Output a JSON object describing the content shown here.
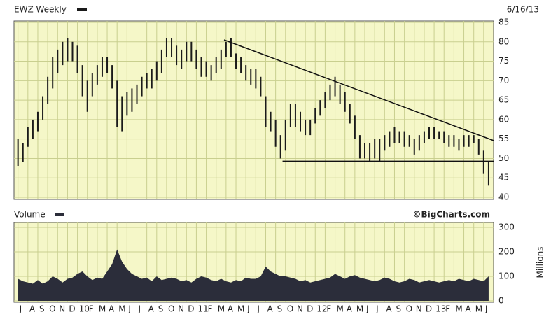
{
  "chart_data": [
    {
      "type": "range-bar",
      "title": "EWZ Weekly",
      "date": "6/16/13",
      "color": "#1a1a1a",
      "grid": true,
      "xlim": [
        -0.4,
        48
      ],
      "ylim": [
        40,
        85
      ],
      "yticks": [
        85,
        80,
        75,
        70,
        65,
        60,
        55,
        50,
        45,
        40
      ],
      "x": [
        0,
        0.5,
        1,
        1.5,
        2,
        2.5,
        3,
        3.5,
        4,
        4.5,
        5,
        5.5,
        6,
        6.5,
        7,
        7.5,
        8,
        8.5,
        9,
        9.5,
        10,
        10.5,
        11,
        11.5,
        12,
        12.5,
        13,
        13.5,
        14,
        14.5,
        15,
        15.5,
        16,
        16.5,
        17,
        17.5,
        18,
        18.5,
        19,
        19.5,
        20,
        20.5,
        21,
        21.5,
        22,
        22.5,
        23,
        23.5,
        24,
        24.5,
        25,
        25.5,
        26,
        26.5,
        27,
        27.5,
        28,
        28.5,
        29,
        29.5,
        30,
        30.5,
        31,
        31.5,
        32,
        32.5,
        33,
        33.5,
        34,
        34.5,
        35,
        35.5,
        36,
        36.5,
        37,
        37.5,
        38,
        38.5,
        39,
        39.5,
        40,
        40.5,
        41,
        41.5,
        42,
        42.5,
        43,
        43.5,
        44,
        44.5,
        45,
        45.5,
        46,
        46.5,
        47,
        47.5
      ],
      "high": [
        55,
        54,
        58,
        60,
        62,
        66,
        71,
        76,
        78,
        80,
        81,
        80,
        79,
        74,
        70,
        72,
        74,
        76,
        76,
        74,
        70,
        66,
        67,
        68,
        69,
        71,
        72,
        73,
        75,
        78,
        81,
        81,
        79,
        78,
        80,
        80,
        78,
        76,
        75,
        74,
        76,
        78,
        80,
        81,
        77,
        76,
        74,
        73,
        73,
        71,
        66,
        62,
        60,
        56,
        60,
        64,
        64,
        62,
        60,
        60,
        63,
        65,
        67,
        69,
        71,
        69,
        67,
        64,
        61,
        56,
        54,
        54,
        55,
        55,
        56,
        57,
        58,
        57,
        57,
        56,
        55,
        56,
        57,
        58,
        58,
        57,
        57,
        56,
        56,
        55,
        56,
        56,
        56,
        55,
        52,
        49
      ],
      "low": [
        48,
        49,
        53,
        55,
        57,
        60,
        64,
        68,
        72,
        74,
        75,
        75,
        72,
        66,
        62,
        66,
        69,
        71,
        72,
        68,
        58,
        57,
        61,
        62,
        64,
        66,
        68,
        68,
        70,
        72,
        76,
        76,
        74,
        73,
        75,
        75,
        73,
        71,
        71,
        70,
        72,
        73,
        76,
        76,
        73,
        72,
        70,
        69,
        68,
        66,
        58,
        57,
        53,
        50,
        52,
        58,
        58,
        57,
        56,
        56,
        59,
        61,
        63,
        65,
        66,
        64,
        62,
        59,
        55,
        50,
        50,
        49,
        50,
        49,
        52,
        53,
        54,
        54,
        53,
        53,
        51,
        52,
        54,
        55,
        55,
        55,
        54,
        53,
        53,
        52,
        53,
        53,
        54,
        51,
        46,
        43
      ],
      "trendlines": [
        {
          "x": [
            20.8,
            48
          ],
          "y": [
            80.5,
            54.6
          ]
        },
        {
          "x": [
            26.7,
            48
          ],
          "y": [
            49.3,
            49.3
          ]
        }
      ]
    },
    {
      "type": "area",
      "title": "Volume",
      "source": "©BigCharts.com",
      "ylabel": "Millions",
      "color": "#2b2d3a",
      "grid": true,
      "xlim": [
        -0.4,
        48
      ],
      "ylim": [
        0,
        300
      ],
      "yticks": [
        300,
        200,
        100,
        0
      ],
      "xticks": [
        {
          "value": 0,
          "label": "J"
        },
        {
          "value": 1,
          "label": "A"
        },
        {
          "value": 2,
          "label": "S"
        },
        {
          "value": 3,
          "label": "O"
        },
        {
          "value": 4,
          "label": "N"
        },
        {
          "value": 5,
          "label": "D"
        },
        {
          "value": 6,
          "label": "10"
        },
        {
          "value": 7,
          "label": "F"
        },
        {
          "value": 8,
          "label": "M"
        },
        {
          "value": 9,
          "label": "A"
        },
        {
          "value": 10,
          "label": "M"
        },
        {
          "value": 11,
          "label": "J"
        },
        {
          "value": 12,
          "label": "J"
        },
        {
          "value": 13,
          "label": "A"
        },
        {
          "value": 14,
          "label": "S"
        },
        {
          "value": 15,
          "label": "O"
        },
        {
          "value": 16,
          "label": "N"
        },
        {
          "value": 17,
          "label": "D"
        },
        {
          "value": 18,
          "label": "11"
        },
        {
          "value": 19,
          "label": "F"
        },
        {
          "value": 20,
          "label": "M"
        },
        {
          "value": 21,
          "label": "A"
        },
        {
          "value": 22,
          "label": "M"
        },
        {
          "value": 23,
          "label": "J"
        },
        {
          "value": 24,
          "label": "J"
        },
        {
          "value": 25,
          "label": "A"
        },
        {
          "value": 26,
          "label": "S"
        },
        {
          "value": 27,
          "label": "O"
        },
        {
          "value": 28,
          "label": "N"
        },
        {
          "value": 29,
          "label": "D"
        },
        {
          "value": 30,
          "label": "12"
        },
        {
          "value": 31,
          "label": "F"
        },
        {
          "value": 32,
          "label": "M"
        },
        {
          "value": 33,
          "label": "A"
        },
        {
          "value": 34,
          "label": "M"
        },
        {
          "value": 35,
          "label": "J"
        },
        {
          "value": 36,
          "label": "J"
        },
        {
          "value": 37,
          "label": "A"
        },
        {
          "value": 38,
          "label": "S"
        },
        {
          "value": 39,
          "label": "O"
        },
        {
          "value": 40,
          "label": "N"
        },
        {
          "value": 41,
          "label": "D"
        },
        {
          "value": 42,
          "label": "13"
        },
        {
          "value": 43,
          "label": "F"
        },
        {
          "value": 44,
          "label": "M"
        },
        {
          "value": 45,
          "label": "A"
        },
        {
          "value": 46,
          "label": "M"
        },
        {
          "value": 47,
          "label": "J"
        }
      ],
      "x": [
        0,
        0.5,
        1,
        1.5,
        2,
        2.5,
        3,
        3.5,
        4,
        4.5,
        5,
        5.5,
        6,
        6.5,
        7,
        7.5,
        8,
        8.5,
        9,
        9.5,
        10,
        10.5,
        11,
        11.5,
        12,
        12.5,
        13,
        13.5,
        14,
        14.5,
        15,
        15.5,
        16,
        16.5,
        17,
        17.5,
        18,
        18.5,
        19,
        19.5,
        20,
        20.5,
        21,
        21.5,
        22,
        22.5,
        23,
        23.5,
        24,
        24.5,
        25,
        25.5,
        26,
        26.5,
        27,
        27.5,
        28,
        28.5,
        29,
        29.5,
        30,
        30.5,
        31,
        31.5,
        32,
        32.5,
        33,
        33.5,
        34,
        34.5,
        35,
        35.5,
        36,
        36.5,
        37,
        37.5,
        38,
        38.5,
        39,
        39.5,
        40,
        40.5,
        41,
        41.5,
        42,
        42.5,
        43,
        43.5,
        44,
        44.5,
        45,
        45.5,
        46,
        46.5,
        47,
        47.5
      ],
      "values": [
        90,
        80,
        75,
        70,
        85,
        70,
        80,
        100,
        90,
        75,
        90,
        95,
        110,
        120,
        100,
        85,
        95,
        90,
        120,
        150,
        210,
        160,
        130,
        110,
        100,
        90,
        95,
        80,
        100,
        85,
        90,
        95,
        90,
        80,
        85,
        75,
        90,
        100,
        95,
        85,
        80,
        90,
        80,
        75,
        85,
        80,
        95,
        90,
        90,
        100,
        140,
        120,
        110,
        100,
        100,
        95,
        90,
        80,
        85,
        75,
        80,
        85,
        90,
        95,
        110,
        100,
        90,
        100,
        105,
        95,
        90,
        85,
        80,
        85,
        95,
        90,
        80,
        75,
        80,
        90,
        85,
        75,
        80,
        85,
        80,
        75,
        80,
        85,
        80,
        90,
        85,
        80,
        90,
        85,
        80,
        100
      ]
    }
  ]
}
